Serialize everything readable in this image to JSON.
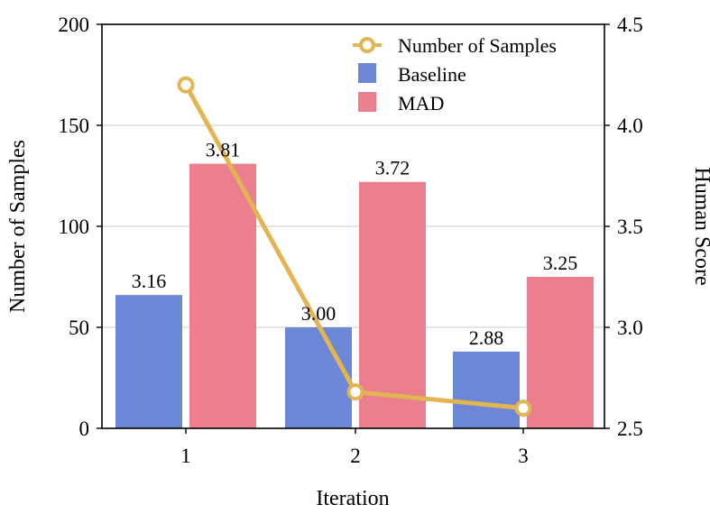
{
  "chart_data": {
    "type": "bar",
    "title": "",
    "xlabel": "Iteration",
    "ylabel_left": "Number of Samples",
    "ylabel_right": "Human Score",
    "categories": [
      "1",
      "2",
      "3"
    ],
    "ylim_left": [
      0,
      200
    ],
    "ylim_right": [
      2.5,
      4.5
    ],
    "yticks_left": [
      "0",
      "50",
      "100",
      "150",
      "200"
    ],
    "yticks_right": [
      "2.5",
      "3.0",
      "3.5",
      "4.0",
      "4.5"
    ],
    "grid": true,
    "legend_position": "top-right",
    "series": [
      {
        "name": "Number of Samples",
        "kind": "line",
        "axis": "left",
        "color": "#E3B452",
        "values": [
          170,
          18,
          10
        ]
      },
      {
        "name": "Baseline",
        "kind": "bar",
        "axis": "right",
        "color": "#6C87D6",
        "values": [
          3.16,
          3.0,
          2.88
        ],
        "labels": [
          "3.16",
          "3.00",
          "2.88"
        ]
      },
      {
        "name": "MAD",
        "kind": "bar",
        "axis": "right",
        "color": "#EC7F8E",
        "values": [
          3.81,
          3.72,
          3.25
        ],
        "labels": [
          "3.81",
          "3.72",
          "3.25"
        ]
      }
    ]
  }
}
